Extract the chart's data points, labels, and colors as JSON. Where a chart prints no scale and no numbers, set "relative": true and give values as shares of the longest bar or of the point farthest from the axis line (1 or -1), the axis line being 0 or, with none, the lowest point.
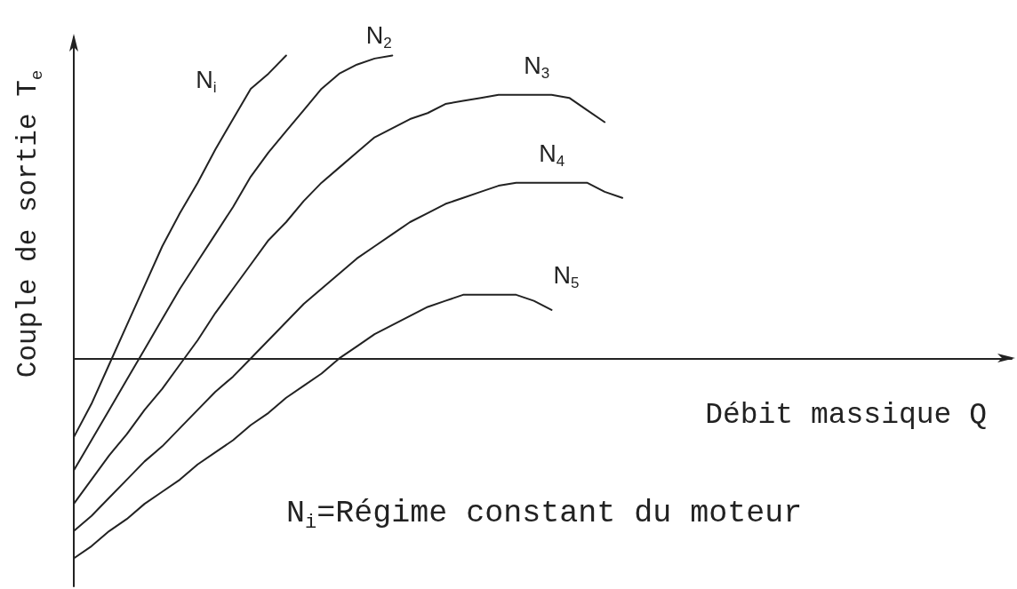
{
  "chart_data": {
    "type": "line",
    "relative": true,
    "ylabel": "Couple de sortie T$_{e}$",
    "xlabel": "Débit massique Q",
    "annotations": [
      "N$_{i}$=Régime constant du moteur"
    ],
    "marker": "none",
    "line_style": "solid",
    "categories": [
      null,
      null,
      null,
      null,
      null,
      null,
      null,
      null,
      null,
      null,
      null,
      null,
      null,
      null,
      null,
      null,
      null,
      null,
      null,
      null,
      null,
      null,
      null,
      null,
      null,
      null,
      null,
      null,
      null,
      null,
      null,
      null,
      null,
      null,
      null,
      null,
      null,
      null,
      null,
      null,
      null,
      null,
      null,
      null,
      null,
      null,
      null,
      null,
      null,
      null,
      null,
      null,
      null,
      null
    ],
    "series": [
      {
        "name": "N$_{i}$",
        "color": "#222222",
        "values": [
          -0.26,
          -0.15,
          -0.02,
          0.11,
          0.24,
          0.37,
          0.48,
          0.58,
          0.69,
          0.79,
          0.89,
          0.94,
          1.0,
          null,
          null,
          null,
          null,
          null,
          null,
          null,
          null,
          null,
          null,
          null,
          null,
          null,
          null,
          null,
          null,
          null,
          null,
          null,
          null,
          null,
          null,
          null,
          null,
          null,
          null,
          null,
          null,
          null,
          null,
          null,
          null,
          null,
          null,
          null,
          null,
          null,
          null,
          null,
          null,
          null
        ]
      },
      {
        "name": "N$_{2}$",
        "color": "#222222",
        "values": [
          -0.37,
          -0.27,
          -0.17,
          -0.07,
          0.03,
          0.13,
          0.23,
          0.32,
          0.41,
          0.5,
          0.6,
          0.68,
          0.75,
          0.82,
          0.89,
          0.94,
          0.97,
          0.99,
          1.0,
          null,
          null,
          null,
          null,
          null,
          null,
          null,
          null,
          null,
          null,
          null,
          null,
          null,
          null,
          null,
          null,
          null,
          null,
          null,
          null,
          null,
          null,
          null,
          null,
          null,
          null,
          null,
          null,
          null,
          null,
          null,
          null,
          null,
          null,
          null
        ]
      },
      {
        "name": "N$_{3}$",
        "color": "#222222",
        "values": [
          -0.48,
          -0.4,
          -0.32,
          -0.25,
          -0.17,
          -0.1,
          -0.02,
          0.06,
          0.15,
          0.23,
          0.31,
          0.39,
          0.45,
          0.52,
          0.58,
          0.63,
          0.68,
          0.73,
          0.76,
          0.79,
          0.81,
          0.84,
          0.85,
          0.86,
          0.87,
          0.87,
          0.87,
          0.87,
          0.86,
          0.82,
          0.78,
          null,
          null,
          null,
          null,
          null,
          null,
          null,
          null,
          null,
          null,
          null,
          null,
          null,
          null,
          null,
          null,
          null,
          null,
          null,
          null,
          null,
          null,
          null
        ]
      },
      {
        "name": "N$_{4}$",
        "color": "#222222",
        "values": [
          -0.57,
          -0.52,
          -0.46,
          -0.4,
          -0.34,
          -0.29,
          -0.23,
          -0.17,
          -0.11,
          -0.06,
          0,
          0.06,
          0.12,
          0.18,
          0.23,
          0.28,
          0.33,
          0.37,
          0.41,
          0.45,
          0.48,
          0.51,
          0.53,
          0.55,
          0.57,
          0.58,
          0.58,
          0.58,
          0.58,
          0.58,
          0.55,
          0.53,
          null,
          null,
          null,
          null,
          null,
          null,
          null,
          null,
          null,
          null,
          null,
          null,
          null,
          null,
          null,
          null,
          null,
          null,
          null,
          null,
          null,
          null
        ]
      },
      {
        "name": "N$_{5}$",
        "color": "#222222",
        "values": [
          -0.66,
          -0.62,
          -0.57,
          -0.53,
          -0.48,
          -0.44,
          -0.4,
          -0.35,
          -0.31,
          -0.27,
          -0.22,
          -0.18,
          -0.13,
          -0.09,
          -0.05,
          0,
          0.04,
          0.08,
          0.11,
          0.14,
          0.17,
          0.19,
          0.21,
          0.21,
          0.21,
          0.21,
          0.19,
          0.16,
          null,
          null,
          null,
          null,
          null,
          null,
          null,
          null,
          null,
          null,
          null,
          null,
          null,
          null,
          null,
          null,
          null,
          null,
          null,
          null,
          null,
          null,
          null,
          null,
          null,
          null
        ]
      }
    ]
  }
}
